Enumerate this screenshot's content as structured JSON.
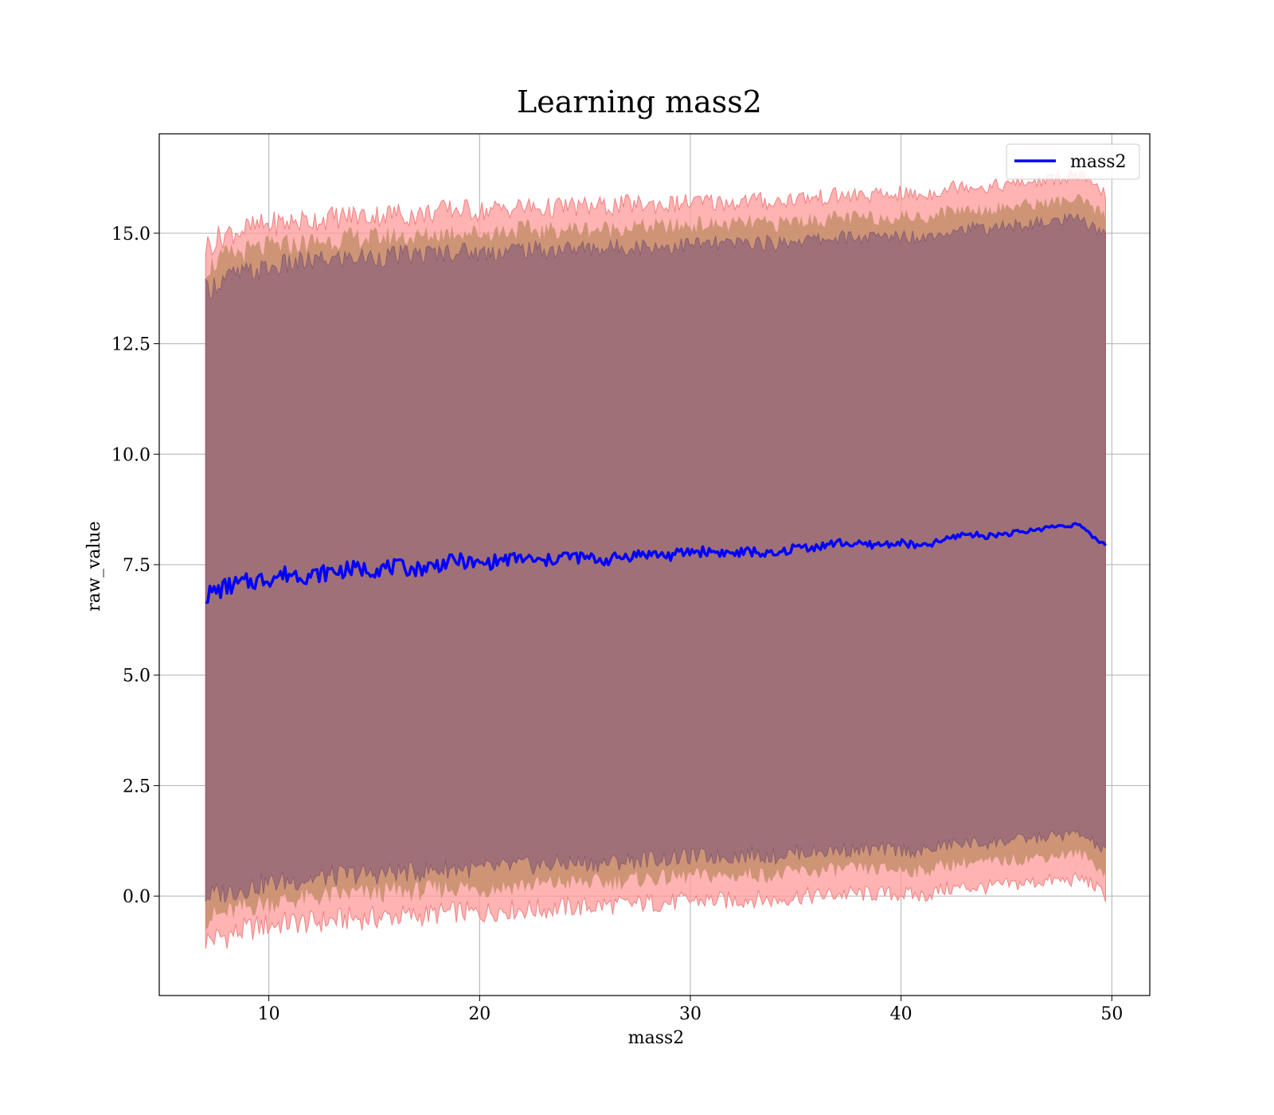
{
  "chart_data": {
    "type": "line",
    "title": "Learning mass2",
    "xlabel": "mass2",
    "ylabel": "raw_value",
    "xlim": [
      4.8,
      51.8
    ],
    "ylim": [
      -2.25,
      17.25
    ],
    "xticks": [
      10,
      20,
      30,
      40,
      50
    ],
    "xtick_labels": [
      "10",
      "20",
      "30",
      "40",
      "50"
    ],
    "yticks": [
      0.0,
      2.5,
      5.0,
      7.5,
      10.0,
      12.5,
      15.0
    ],
    "ytick_labels": [
      "0.0",
      "2.5",
      "5.0",
      "7.5",
      "10.0",
      "12.5",
      "15.0"
    ],
    "grid": true,
    "legend": {
      "location": "top-right",
      "entries": [
        "mass2"
      ]
    },
    "colors": {
      "line": "#0000ff",
      "band_outer": "#ff9a9a",
      "band_middle": "#c8906f",
      "band_inner": "#a07078"
    },
    "series": [
      {
        "name": "mass2",
        "x": [
          7.0,
          8.0,
          9.0,
          10.0,
          11.0,
          12.0,
          13.0,
          14.0,
          15.0,
          16.0,
          17.0,
          18.0,
          19.0,
          20.0,
          21.0,
          22.0,
          23.0,
          24.0,
          25.0,
          26.0,
          27.0,
          28.0,
          29.0,
          30.0,
          31.0,
          32.0,
          33.0,
          34.0,
          35.0,
          36.0,
          37.0,
          38.0,
          39.0,
          40.0,
          41.0,
          42.0,
          43.0,
          44.0,
          45.0,
          46.0,
          47.0,
          48.0,
          48.5,
          49.0,
          49.7
        ],
        "y": [
          6.8,
          7.0,
          7.1,
          7.2,
          7.3,
          7.25,
          7.35,
          7.4,
          7.4,
          7.45,
          7.4,
          7.5,
          7.6,
          7.5,
          7.6,
          7.65,
          7.55,
          7.7,
          7.65,
          7.6,
          7.7,
          7.75,
          7.7,
          7.8,
          7.8,
          7.75,
          7.8,
          7.7,
          7.9,
          7.9,
          8.0,
          7.95,
          7.95,
          8.0,
          7.9,
          8.05,
          8.2,
          8.15,
          8.2,
          8.25,
          8.35,
          8.4,
          8.4,
          8.15,
          7.95
        ],
        "band_outer": {
          "lower": [
            -1.0,
            -0.9,
            -0.75,
            -0.65,
            -0.6,
            -0.6,
            -0.55,
            -0.5,
            -0.5,
            -0.45,
            -0.45,
            -0.4,
            -0.35,
            -0.4,
            -0.3,
            -0.3,
            -0.3,
            -0.25,
            -0.25,
            -0.2,
            -0.2,
            -0.15,
            -0.15,
            -0.1,
            -0.1,
            -0.1,
            -0.05,
            -0.1,
            0.0,
            0.0,
            0.05,
            0.05,
            0.05,
            0.05,
            0.0,
            0.15,
            0.2,
            0.2,
            0.25,
            0.3,
            0.35,
            0.35,
            0.4,
            0.3,
            0.0
          ],
          "upper": [
            14.7,
            15.0,
            15.1,
            15.2,
            15.25,
            15.3,
            15.35,
            15.4,
            15.4,
            15.45,
            15.4,
            15.5,
            15.55,
            15.5,
            15.55,
            15.6,
            15.55,
            15.6,
            15.6,
            15.6,
            15.65,
            15.65,
            15.65,
            15.7,
            15.7,
            15.7,
            15.75,
            15.7,
            15.8,
            15.8,
            15.85,
            15.85,
            15.85,
            15.9,
            15.85,
            16.0,
            16.1,
            16.05,
            16.1,
            16.15,
            16.2,
            16.3,
            16.3,
            16.1,
            15.9
          ]
        },
        "band_middle": {
          "lower": [
            -0.5,
            -0.4,
            -0.25,
            -0.15,
            -0.1,
            -0.05,
            0.0,
            0.05,
            0.05,
            0.1,
            0.1,
            0.15,
            0.2,
            0.15,
            0.2,
            0.25,
            0.25,
            0.3,
            0.3,
            0.3,
            0.35,
            0.4,
            0.4,
            0.45,
            0.45,
            0.45,
            0.5,
            0.45,
            0.55,
            0.55,
            0.6,
            0.6,
            0.6,
            0.6,
            0.55,
            0.7,
            0.75,
            0.75,
            0.8,
            0.85,
            0.9,
            0.95,
            0.95,
            0.8,
            0.5
          ],
          "upper": [
            14.2,
            14.5,
            14.6,
            14.7,
            14.75,
            14.8,
            14.85,
            14.9,
            14.9,
            14.95,
            14.9,
            15.0,
            15.05,
            15.0,
            15.05,
            15.1,
            15.05,
            15.1,
            15.1,
            15.1,
            15.15,
            15.15,
            15.15,
            15.2,
            15.2,
            15.2,
            15.25,
            15.2,
            15.3,
            15.3,
            15.35,
            15.35,
            15.35,
            15.4,
            15.35,
            15.5,
            15.55,
            15.55,
            15.6,
            15.65,
            15.7,
            15.75,
            15.75,
            15.6,
            15.4
          ]
        },
        "band_inner": {
          "lower": [
            0.0,
            0.1,
            0.2,
            0.3,
            0.35,
            0.4,
            0.45,
            0.5,
            0.5,
            0.55,
            0.55,
            0.6,
            0.65,
            0.6,
            0.65,
            0.7,
            0.7,
            0.75,
            0.75,
            0.75,
            0.8,
            0.85,
            0.85,
            0.9,
            0.9,
            0.9,
            0.95,
            0.9,
            1.0,
            1.0,
            1.05,
            1.05,
            1.05,
            1.05,
            1.0,
            1.15,
            1.2,
            1.2,
            1.25,
            1.3,
            1.35,
            1.4,
            1.4,
            1.25,
            1.0
          ],
          "upper": [
            13.7,
            14.0,
            14.1,
            14.2,
            14.3,
            14.35,
            14.4,
            14.45,
            14.45,
            14.5,
            14.5,
            14.55,
            14.6,
            14.55,
            14.6,
            14.65,
            14.6,
            14.65,
            14.65,
            14.65,
            14.7,
            14.7,
            14.7,
            14.75,
            14.75,
            14.75,
            14.8,
            14.75,
            14.85,
            14.85,
            14.9,
            14.9,
            14.9,
            14.95,
            14.9,
            15.05,
            15.1,
            15.1,
            15.15,
            15.2,
            15.25,
            15.3,
            15.3,
            15.15,
            14.95
          ]
        }
      }
    ]
  }
}
